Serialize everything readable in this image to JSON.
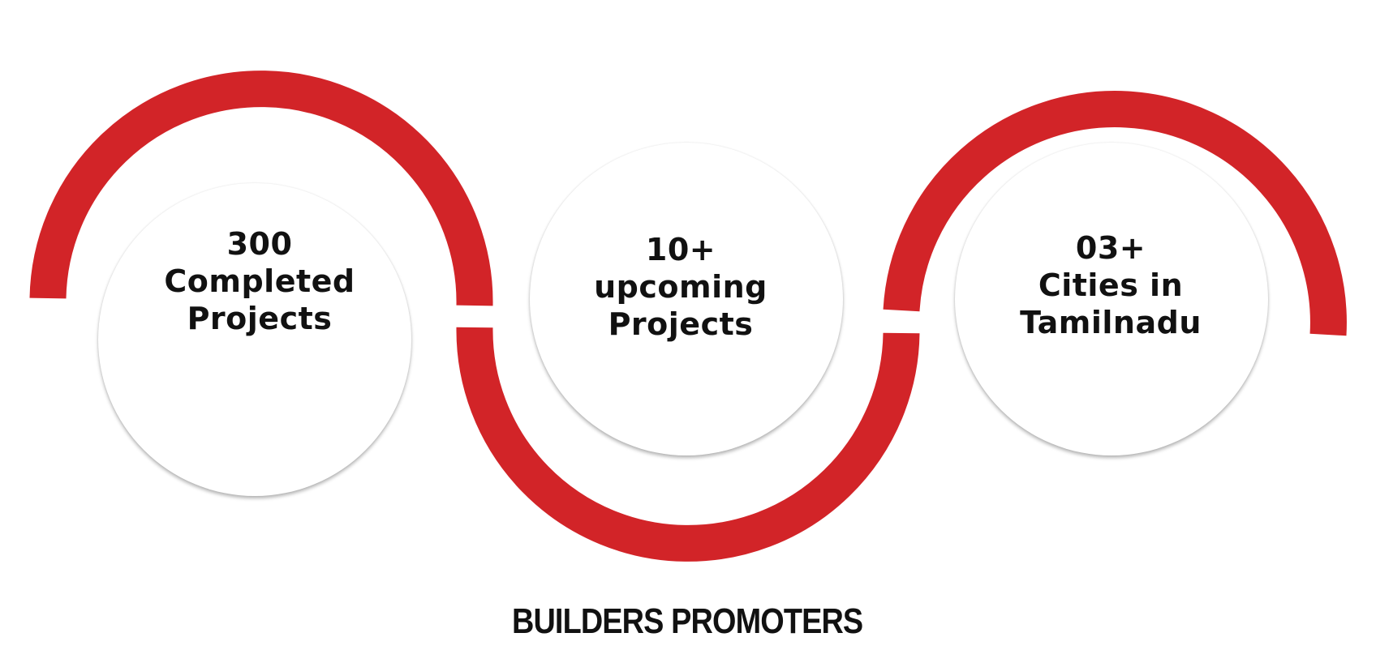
{
  "colors": {
    "arc": "#d22428",
    "text": "#111111",
    "background": "#ffffff"
  },
  "stats": [
    {
      "value": "300",
      "line1": "Completed",
      "line2": "Projects"
    },
    {
      "value": "10+",
      "line1": "upcoming",
      "line2": "Projects"
    },
    {
      "value": "03+",
      "line1": "Cities in",
      "line2": "Tamilnadu"
    }
  ],
  "brand": {
    "name": "BUILDERS PROMOTERS"
  }
}
